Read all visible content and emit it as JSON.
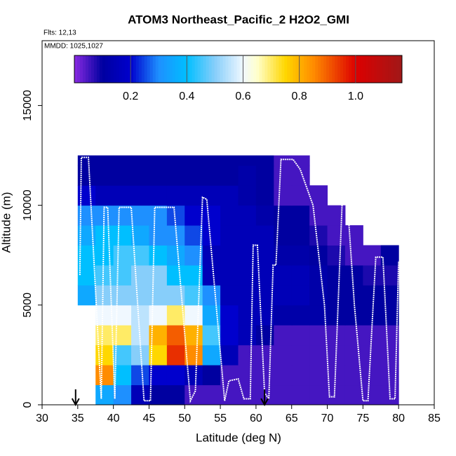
{
  "chart_data": {
    "type": "heatmap",
    "title": "ATOM3 Northeast_Pacific_2 H2O2_GMI",
    "annotations": [
      "Flts: 12,13",
      "MMDD: 1025,1027"
    ],
    "x_label": "Latitude (deg N)",
    "y_label": "Altitude (m)",
    "xlim": [
      30,
      85
    ],
    "ylim": [
      0,
      18250
    ],
    "xticks": [
      30,
      35,
      40,
      45,
      50,
      55,
      60,
      65,
      70,
      75,
      80,
      85
    ],
    "yticks": [
      0,
      5000,
      10000,
      15000
    ],
    "x_bins": [
      35,
      37.5,
      40,
      42.5,
      45,
      47.5,
      50,
      52.5,
      55,
      57.5,
      60,
      62.5,
      65,
      67.5,
      70,
      72.5,
      75,
      77.5,
      80
    ],
    "y_bins": [
      0,
      1000,
      2000,
      3000,
      4000,
      5000,
      6000,
      7000,
      8000,
      9000,
      10000,
      11000,
      12000,
      12500
    ],
    "values": [
      [
        null,
        0.35,
        0.3,
        0.15,
        0.1,
        0.1,
        0.05,
        0.05,
        0.05,
        0.05,
        0.05,
        0.05,
        0.05,
        0.05,
        0.05,
        0.05,
        0.05,
        0.05
      ],
      [
        null,
        0.85,
        0.4,
        0.25,
        0.2,
        0.2,
        0.15,
        0.1,
        0.05,
        0.05,
        0.05,
        0.05,
        0.05,
        0.05,
        0.05,
        0.05,
        0.05,
        0.05
      ],
      [
        null,
        0.75,
        0.45,
        0.5,
        0.75,
        0.95,
        0.85,
        0.35,
        0.15,
        0.05,
        0.05,
        0.05,
        0.05,
        0.05,
        0.05,
        0.05,
        0.05,
        0.05
      ],
      [
        null,
        0.7,
        0.7,
        0.55,
        0.8,
        0.9,
        0.8,
        0.45,
        0.2,
        0.15,
        0.1,
        0.05,
        0.05,
        0.05,
        0.05,
        0.05,
        0.05,
        0.05
      ],
      [
        null,
        0.6,
        0.6,
        0.55,
        0.6,
        0.7,
        0.6,
        0.35,
        0.2,
        0.15,
        0.15,
        0.12,
        0.12,
        0.12,
        0.1,
        0.1,
        0.1,
        0.1
      ],
      [
        0.35,
        0.5,
        0.5,
        0.5,
        0.5,
        0.5,
        0.45,
        0.3,
        0.15,
        0.15,
        0.15,
        0.15,
        0.15,
        0.12,
        0.1,
        0.1,
        0.1,
        0.1
      ],
      [
        0.4,
        0.45,
        0.45,
        0.5,
        0.5,
        0.4,
        0.4,
        0.15,
        0.15,
        0.15,
        0.15,
        0.15,
        0.15,
        0.12,
        0.1,
        0.1,
        0.08,
        0.08
      ],
      [
        0.4,
        0.4,
        0.45,
        0.45,
        0.4,
        0.35,
        0.3,
        0.15,
        0.15,
        0.15,
        0.15,
        0.12,
        0.12,
        0.1,
        0.08,
        0.05,
        0.05,
        0.1
      ],
      [
        0.35,
        0.4,
        0.4,
        0.35,
        0.3,
        0.3,
        0.25,
        0.2,
        0.15,
        0.15,
        0.15,
        0.1,
        0.1,
        0.08,
        0.05,
        0.05,
        null,
        null
      ],
      [
        0.3,
        0.3,
        0.3,
        0.3,
        0.3,
        0.25,
        0.2,
        0.2,
        0.15,
        0.15,
        0.12,
        0.1,
        0.1,
        0.05,
        0.05,
        null,
        null,
        null
      ],
      [
        0.2,
        0.15,
        0.15,
        0.15,
        0.15,
        0.15,
        0.15,
        0.15,
        0.15,
        0.12,
        0.1,
        0.05,
        0.05,
        0.05,
        null,
        null,
        null,
        null
      ],
      [
        0.1,
        0.1,
        0.1,
        0.1,
        0.1,
        0.1,
        0.1,
        0.1,
        0.1,
        0.12,
        0.1,
        0.05,
        0.05,
        null,
        null,
        null,
        null,
        null
      ],
      [
        0.1,
        0.1,
        0.1,
        0.1,
        0.1,
        0.1,
        0.1,
        0.1,
        0.1,
        0.1,
        0.1,
        0.05,
        0.05,
        null,
        null,
        null,
        null,
        null
      ]
    ],
    "colorscale": [
      [
        0,
        "#8a2be2"
      ],
      [
        0.1,
        "#0000a0"
      ],
      [
        0.2,
        "#0000cd"
      ],
      [
        0.3,
        "#1e90ff"
      ],
      [
        0.4,
        "#00bfff"
      ],
      [
        0.5,
        "#87cefa"
      ],
      [
        0.6,
        "#f0f8ff"
      ],
      [
        0.65,
        "#ffffcc"
      ],
      [
        0.75,
        "#ffd700"
      ],
      [
        0.85,
        "#ff8c00"
      ],
      [
        1.0,
        "#dd0000"
      ],
      [
        1.165,
        "#a01818"
      ]
    ],
    "colorbar": {
      "lim": [
        0,
        1.165
      ],
      "ticks": [
        0.2,
        0.4,
        0.6,
        0.8,
        {
          "value": 1.0,
          "label": "1.0"
        }
      ]
    },
    "track": {
      "color": "#ffffff",
      "x": [
        35.3,
        35.5,
        36.5,
        38.3,
        38.7,
        39.2,
        40.2,
        40.8,
        42.5,
        44.3,
        45.2,
        45.8,
        48.5,
        50.8,
        51.5,
        52.5,
        53.1,
        55.6,
        56.2,
        57.5,
        58.3,
        59.2,
        59.6,
        60.2,
        61.2,
        61.8,
        62.4,
        62.8,
        63.5,
        65.2,
        66.2,
        68,
        69.6,
        70.3,
        71,
        72.1,
        72.8,
        73.8,
        75,
        75.7,
        76.8,
        77.8,
        78.8,
        79.5,
        80
      ],
      "y": [
        6500,
        12400,
        12400,
        300,
        9900,
        9900,
        300,
        9900,
        9900,
        200,
        200,
        9900,
        9900,
        200,
        700,
        10400,
        10300,
        200,
        1200,
        1300,
        300,
        300,
        8000,
        8000,
        600,
        300,
        7000,
        7000,
        12300,
        12300,
        11800,
        10000,
        5000,
        400,
        400,
        10300,
        10300,
        5000,
        200,
        200,
        7400,
        7400,
        300,
        300,
        7200
      ]
    },
    "arrows_x": [
      34.7,
      61.2
    ]
  }
}
